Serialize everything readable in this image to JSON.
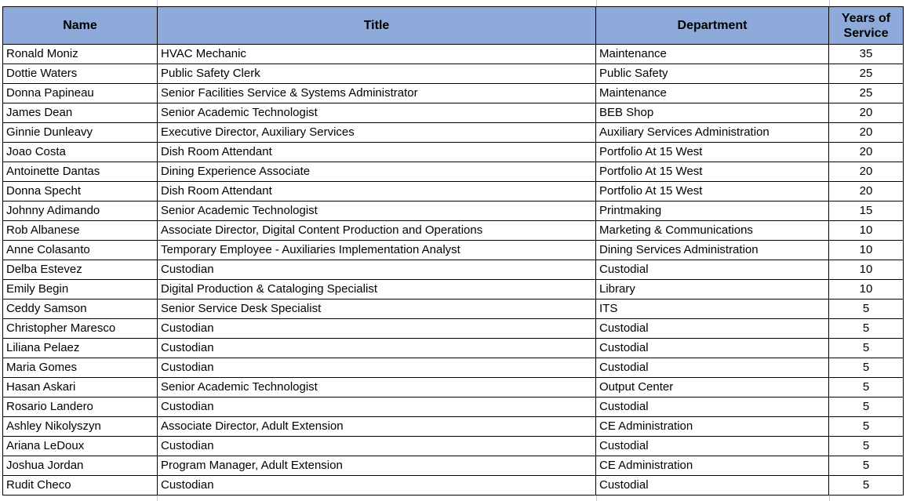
{
  "palette": {
    "header_bg": "#8EAADB",
    "border": "#000000",
    "gridline": "#C9C9C9",
    "text": "#000000"
  },
  "table": {
    "columns": [
      "Name",
      "Title",
      "Department",
      "Years of Service"
    ],
    "rows": [
      [
        "Ronald Moniz",
        "HVAC Mechanic",
        "Maintenance",
        "35"
      ],
      [
        "Dottie Waters",
        "Public Safety Clerk",
        "Public Safety",
        "25"
      ],
      [
        "Donna Papineau",
        "Senior Facilities Service & Systems Administrator",
        "Maintenance",
        "25"
      ],
      [
        "James Dean",
        "Senior Academic Technologist",
        "BEB Shop",
        "20"
      ],
      [
        "Ginnie Dunleavy",
        "Executive Director, Auxiliary Services",
        "Auxiliary Services Administration",
        "20"
      ],
      [
        "Joao Costa",
        "Dish Room Attendant",
        "Portfolio At 15 West",
        "20"
      ],
      [
        "Antoinette Dantas",
        "Dining Experience Associate",
        "Portfolio At 15 West",
        "20"
      ],
      [
        "Donna Specht",
        "Dish Room Attendant",
        "Portfolio At 15 West",
        "20"
      ],
      [
        "Johnny Adimando",
        "Senior Academic Technologist",
        "Printmaking",
        "15"
      ],
      [
        "Rob Albanese",
        "Associate Director, Digital Content Production and Operations",
        "Marketing & Communications",
        "10"
      ],
      [
        "Anne Colasanto",
        "Temporary Employee - Auxiliaries Implementation Analyst",
        "Dining Services Administration",
        "10"
      ],
      [
        "Delba Estevez",
        "Custodian",
        "Custodial",
        "10"
      ],
      [
        "Emily Begin",
        "Digital Production & Cataloging Specialist",
        "Library",
        "10"
      ],
      [
        "Ceddy Samson",
        "Senior Service Desk Specialist",
        "ITS",
        "5"
      ],
      [
        "Christopher Maresco",
        "Custodian",
        "Custodial",
        "5"
      ],
      [
        "Liliana Pelaez",
        "Custodian",
        "Custodial",
        "5"
      ],
      [
        "Maria Gomes",
        "Custodian",
        "Custodial",
        "5"
      ],
      [
        "Hasan Askari",
        "Senior Academic Technologist",
        "Output Center",
        "5"
      ],
      [
        "Rosario Landero",
        "Custodian",
        "Custodial",
        "5"
      ],
      [
        "Ashley Nikolyszyn",
        "Associate Director, Adult Extension",
        "CE Administration",
        "5"
      ],
      [
        "Ariana LeDoux",
        "Custodian",
        "Custodial",
        "5"
      ],
      [
        "Joshua Jordan",
        "Program Manager, Adult Extension",
        "CE Administration",
        "5"
      ],
      [
        "Rudit Checo",
        "Custodian",
        "Custodial",
        "5"
      ]
    ]
  }
}
